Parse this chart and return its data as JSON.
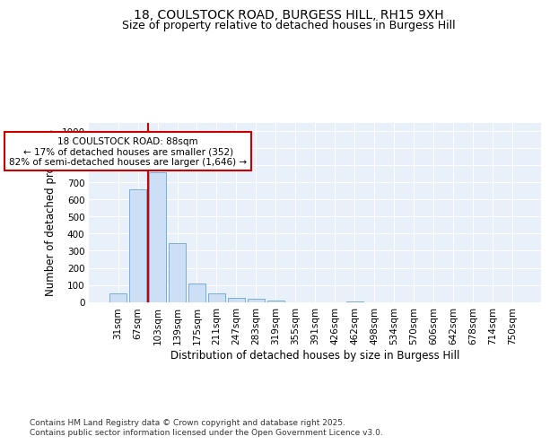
{
  "title1": "18, COULSTOCK ROAD, BURGESS HILL, RH15 9XH",
  "title2": "Size of property relative to detached houses in Burgess Hill",
  "xlabel": "Distribution of detached houses by size in Burgess Hill",
  "ylabel": "Number of detached properties",
  "categories": [
    "31sqm",
    "67sqm",
    "103sqm",
    "139sqm",
    "175sqm",
    "211sqm",
    "247sqm",
    "283sqm",
    "319sqm",
    "355sqm",
    "391sqm",
    "426sqm",
    "462sqm",
    "498sqm",
    "534sqm",
    "570sqm",
    "606sqm",
    "642sqm",
    "678sqm",
    "714sqm",
    "750sqm"
  ],
  "values": [
    50,
    660,
    760,
    345,
    110,
    50,
    25,
    18,
    10,
    0,
    0,
    0,
    5,
    0,
    0,
    0,
    0,
    0,
    0,
    0,
    0
  ],
  "bar_color": "#ccdff5",
  "bar_edge_color": "#7aaed4",
  "vline_x": 1.5,
  "vline_color": "#cc0000",
  "annotation_text": "18 COULSTOCK ROAD: 88sqm\n← 17% of detached houses are smaller (352)\n82% of semi-detached houses are larger (1,646) →",
  "annotation_box_color": "#cc0000",
  "ylim": [
    0,
    1050
  ],
  "yticks": [
    0,
    100,
    200,
    300,
    400,
    500,
    600,
    700,
    800,
    900,
    1000
  ],
  "bg_color": "#e8f0fa",
  "grid_color": "#ffffff",
  "footer": "Contains HM Land Registry data © Crown copyright and database right 2025.\nContains public sector information licensed under the Open Government Licence v3.0.",
  "title_fontsize": 10,
  "subtitle_fontsize": 9,
  "tick_fontsize": 7.5,
  "ylabel_fontsize": 8.5,
  "xlabel_fontsize": 8.5,
  "footer_fontsize": 6.5
}
